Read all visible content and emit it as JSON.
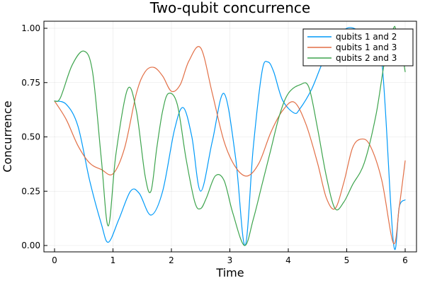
{
  "chart_data": {
    "type": "line",
    "title": "Two-qubit concurrence",
    "xlabel": "Time",
    "ylabel": "Concurrence",
    "xlim": [
      0,
      6
    ],
    "ylim": [
      0,
      1
    ],
    "xticks": [
      0,
      1,
      2,
      3,
      4,
      5,
      6
    ],
    "yticks": [
      "0.00",
      "0.25",
      "0.50",
      "0.75",
      "1.00"
    ],
    "grid": true,
    "legend_position": "top-right",
    "series": [
      {
        "name": "qubits 1 and 2",
        "color": "#009af9",
        "x": [
          0,
          0.2,
          0.4,
          0.6,
          0.8,
          0.92,
          1.1,
          1.3,
          1.45,
          1.65,
          1.85,
          2.05,
          2.2,
          2.35,
          2.5,
          2.7,
          2.9,
          3.1,
          3.26,
          3.4,
          3.55,
          3.65,
          3.75,
          3.9,
          4.1,
          4.2,
          4.4,
          4.6,
          4.8,
          5.0,
          5.2,
          5.4,
          5.6,
          5.8,
          5.9,
          6.0
        ],
        "y": [
          0.665,
          0.65,
          0.55,
          0.3,
          0.1,
          0.015,
          0.12,
          0.25,
          0.24,
          0.14,
          0.25,
          0.53,
          0.635,
          0.5,
          0.25,
          0.48,
          0.7,
          0.4,
          0.0,
          0.45,
          0.8,
          0.845,
          0.8,
          0.67,
          0.61,
          0.63,
          0.72,
          0.85,
          0.94,
          1.0,
          0.99,
          0.94,
          0.85,
          0.01,
          0.18,
          0.21
        ]
      },
      {
        "name": "qubits 1 and 3",
        "color": "#e26f46",
        "x": [
          0,
          0.2,
          0.4,
          0.6,
          0.8,
          1.0,
          1.2,
          1.4,
          1.55,
          1.7,
          1.85,
          2.0,
          2.15,
          2.3,
          2.5,
          2.7,
          2.9,
          3.1,
          3.3,
          3.5,
          3.7,
          3.9,
          4.1,
          4.3,
          4.5,
          4.65,
          4.8,
          4.95,
          5.1,
          5.25,
          5.4,
          5.6,
          5.8,
          5.9,
          6.0
        ],
        "y": [
          0.665,
          0.58,
          0.46,
          0.38,
          0.35,
          0.33,
          0.45,
          0.7,
          0.8,
          0.82,
          0.78,
          0.71,
          0.74,
          0.85,
          0.91,
          0.7,
          0.48,
          0.36,
          0.32,
          0.38,
          0.52,
          0.62,
          0.66,
          0.56,
          0.38,
          0.22,
          0.17,
          0.29,
          0.45,
          0.49,
          0.46,
          0.3,
          0.01,
          0.18,
          0.39
        ]
      },
      {
        "name": "qubits 2 and 3",
        "color": "#3da44d",
        "x": [
          0,
          0.1,
          0.3,
          0.5,
          0.65,
          0.8,
          0.92,
          1.05,
          1.25,
          1.4,
          1.55,
          1.65,
          1.75,
          1.85,
          1.95,
          2.1,
          2.25,
          2.4,
          2.5,
          2.6,
          2.75,
          2.9,
          3.05,
          3.25,
          3.4,
          3.55,
          3.7,
          3.85,
          4.0,
          4.2,
          4.35,
          4.5,
          4.65,
          4.8,
          4.95,
          5.1,
          5.3,
          5.5,
          5.65,
          5.8,
          5.85,
          5.95,
          6.0
        ],
        "y": [
          0.665,
          0.68,
          0.83,
          0.895,
          0.8,
          0.4,
          0.09,
          0.42,
          0.72,
          0.62,
          0.32,
          0.25,
          0.45,
          0.62,
          0.7,
          0.65,
          0.4,
          0.2,
          0.17,
          0.22,
          0.32,
          0.3,
          0.15,
          0.0,
          0.12,
          0.28,
          0.44,
          0.6,
          0.7,
          0.74,
          0.73,
          0.54,
          0.32,
          0.17,
          0.2,
          0.28,
          0.38,
          0.6,
          0.85,
          1.0,
          0.98,
          0.88,
          0.8
        ]
      }
    ]
  }
}
